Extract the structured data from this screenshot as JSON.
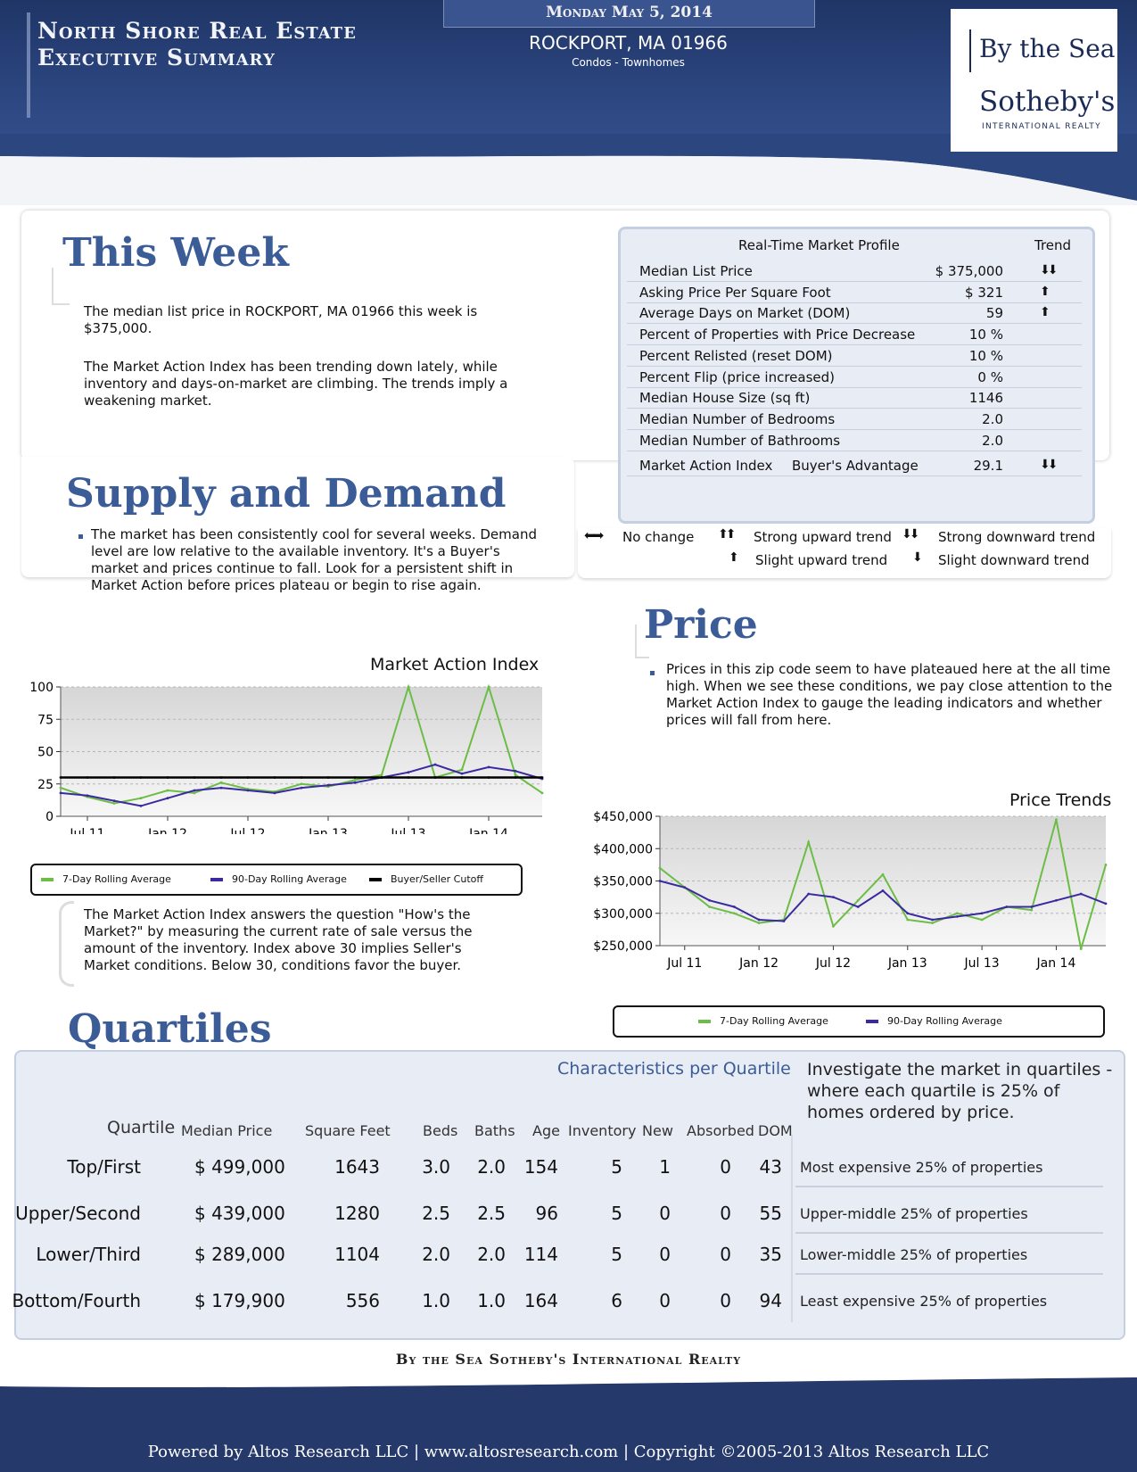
{
  "header": {
    "title_line1": "North Shore Real Estate",
    "title_line2": "Executive Summary",
    "date": "Monday May 5, 2014",
    "location": "ROCKPORT, MA 01966",
    "property_type": "Condos - Townhomes"
  },
  "logo": {
    "by_the_sea": "By the Sea",
    "sothebys": "Sotheby's",
    "intl": "INTERNATIONAL REALTY"
  },
  "this_week": {
    "title": "This Week",
    "para1": "The median list price in ROCKPORT, MA 01966 this week is $375,000.",
    "para2": "The Market Action Index has been trending down lately, while inventory and days-on-market are climbing. The trends imply a weakening market."
  },
  "supply_demand": {
    "title": "Supply and Demand",
    "text": "The market has been consistently cool for several weeks.  Demand level are low relative to the available inventory.  It's a Buyer's market and prices continue to fall.  Look for a persistent shift in Market Action before prices plateau or begin to rise again."
  },
  "profile": {
    "title": "Real-Time Market Profile",
    "trend_header": "Trend",
    "rows": [
      {
        "label": "Median List Price",
        "value": "$ 375,000",
        "trend": "⬇⬇"
      },
      {
        "label": "Asking Price Per Square Foot",
        "value": "$ 321",
        "trend": "⬆"
      },
      {
        "label": "Average Days on Market (DOM)",
        "value": "59",
        "trend": "⬆"
      },
      {
        "label": "Percent of Properties with Price Decrease",
        "value": "10 %",
        "trend": ""
      },
      {
        "label": "Percent Relisted (reset DOM)",
        "value": "10 %",
        "trend": ""
      },
      {
        "label": "Percent Flip (price increased)",
        "value": "0 %",
        "trend": ""
      },
      {
        "label": "Median House Size (sq ft)",
        "value": "1146",
        "trend": ""
      },
      {
        "label": "Median Number of Bedrooms",
        "value": "2.0",
        "trend": ""
      },
      {
        "label": "Median Number of Bathrooms",
        "value": "2.0",
        "trend": ""
      }
    ],
    "mai_row": {
      "label": "Market Action Index",
      "sub": "Buyer's Advantage",
      "value": "29.1",
      "trend": "⬇⬇"
    },
    "legend": {
      "no_change": "No change",
      "strong_up": "Strong upward trend",
      "strong_down": "Strong downward trend",
      "slight_up": "Slight upward trend",
      "slight_down": "Slight downward trend"
    }
  },
  "price": {
    "title": "Price",
    "text": "Prices in this zip code seem to have plateaued here at the all time high. When we see these conditions, we pay close attention to the Market Action Index to gauge the leading indicators and whether prices will fall from here."
  },
  "mai_note": "The Market Action Index answers the question \"How's the Market?\" by measuring the current rate of sale versus the amount of the inventory.  Index above 30 implies Seller's Market conditions. Below 30, conditions favor the buyer.",
  "colors": {
    "seven_day": "#6cbd45",
    "ninety_day": "#3a2aa0",
    "cutoff": "#000000",
    "accent": "#3b5c97"
  },
  "chart_data": [
    {
      "type": "line",
      "title": "Market Action Index",
      "x_ticks": [
        "Jul 11",
        "Jan 12",
        "Jul 12",
        "Jan 13",
        "Jul 13",
        "Jan 14"
      ],
      "y_ticks": [
        "0",
        "25",
        "50",
        "75",
        "100"
      ],
      "ylim": [
        0,
        100
      ],
      "x": [
        "2011-05",
        "2011-07",
        "2011-09",
        "2011-11",
        "2012-01",
        "2012-03",
        "2012-05",
        "2012-07",
        "2012-09",
        "2012-11",
        "2013-01",
        "2013-03",
        "2013-05",
        "2013-07",
        "2013-09",
        "2013-11",
        "2014-01",
        "2014-03",
        "2014-05"
      ],
      "series": [
        {
          "name": "7-Day Rolling Average",
          "values": [
            22,
            15,
            10,
            14,
            20,
            18,
            26,
            21,
            19,
            25,
            23,
            28,
            32,
            100,
            30,
            36,
            100,
            32,
            18
          ]
        },
        {
          "name": "90-Day Rolling Average",
          "values": [
            18,
            16,
            12,
            8,
            14,
            20,
            22,
            20,
            18,
            22,
            24,
            26,
            30,
            34,
            40,
            33,
            38,
            35,
            29
          ]
        },
        {
          "name": "Buyer/Seller Cutoff",
          "values": [
            30,
            30,
            30,
            30,
            30,
            30,
            30,
            30,
            30,
            30,
            30,
            30,
            30,
            30,
            30,
            30,
            30,
            30,
            30
          ]
        }
      ],
      "legend": "bottom"
    },
    {
      "type": "line",
      "title": "Price Trends",
      "x_ticks": [
        "Jul 11",
        "Jan 12",
        "Jul 12",
        "Jan 13",
        "Jul 13",
        "Jan 14"
      ],
      "y_ticks": [
        "$250,000",
        "$300,000",
        "$350,000",
        "$400,000",
        "$450,000"
      ],
      "ylim": [
        250000,
        450000
      ],
      "x": [
        "2011-05",
        "2011-07",
        "2011-09",
        "2011-11",
        "2012-01",
        "2012-03",
        "2012-05",
        "2012-07",
        "2012-09",
        "2012-11",
        "2013-01",
        "2013-03",
        "2013-05",
        "2013-07",
        "2013-09",
        "2013-11",
        "2014-01",
        "2014-03",
        "2014-05"
      ],
      "series": [
        {
          "name": "7-Day Rolling Average",
          "values": [
            370,
            340,
            310,
            300,
            285,
            290,
            410,
            280,
            320,
            360,
            290,
            285,
            300,
            290,
            310,
            305,
            445,
            245,
            375
          ]
        },
        {
          "name": "90-Day Rolling Average",
          "values": [
            350,
            340,
            320,
            310,
            290,
            288,
            330,
            325,
            310,
            335,
            300,
            290,
            295,
            300,
            310,
            310,
            320,
            330,
            315
          ]
        }
      ],
      "legend": "bottom"
    }
  ],
  "legend_labels": {
    "seven_day": "7-Day Rolling Average",
    "ninety_day": "90-Day Rolling Average",
    "cutoff": "Buyer/Seller Cutoff"
  },
  "quartiles": {
    "title": "Quartiles",
    "subtitle": "Characteristics per Quartile",
    "note": "Investigate the market in quartiles - where each quartile is 25% of homes ordered by price.",
    "headers": [
      "Quartile",
      "Median Price",
      "Square Feet",
      "Beds",
      "Baths",
      "Age",
      "Inventory",
      "New",
      "Absorbed",
      "DOM"
    ],
    "rows": [
      {
        "name": "Top/First",
        "price": "$ 499,000",
        "sqft": "1643",
        "beds": "3.0",
        "baths": "2.0",
        "age": "154",
        "inv": "5",
        "new": "1",
        "abs": "0",
        "dom": "43",
        "desc": "Most expensive 25% of properties"
      },
      {
        "name": "Upper/Second",
        "price": "$ 439,000",
        "sqft": "1280",
        "beds": "2.5",
        "baths": "2.5",
        "age": "96",
        "inv": "5",
        "new": "0",
        "abs": "0",
        "dom": "55",
        "desc": "Upper-middle 25% of properties"
      },
      {
        "name": "Lower/Third",
        "price": "$ 289,000",
        "sqft": "1104",
        "beds": "2.0",
        "baths": "2.0",
        "age": "114",
        "inv": "5",
        "new": "0",
        "abs": "0",
        "dom": "35",
        "desc": "Lower-middle 25% of properties"
      },
      {
        "name": "Bottom/Fourth",
        "price": "$ 179,900",
        "sqft": "556",
        "beds": "1.0",
        "baths": "1.0",
        "age": "164",
        "inv": "6",
        "new": "0",
        "abs": "0",
        "dom": "94",
        "desc": "Least expensive 25% of properties"
      }
    ]
  },
  "brand_line": "By the Sea Sotheby's International Realty",
  "footer": "Powered by Altos Research LLC | www.altosresearch.com | Copyright ©2005-2013 Altos Research LLC"
}
